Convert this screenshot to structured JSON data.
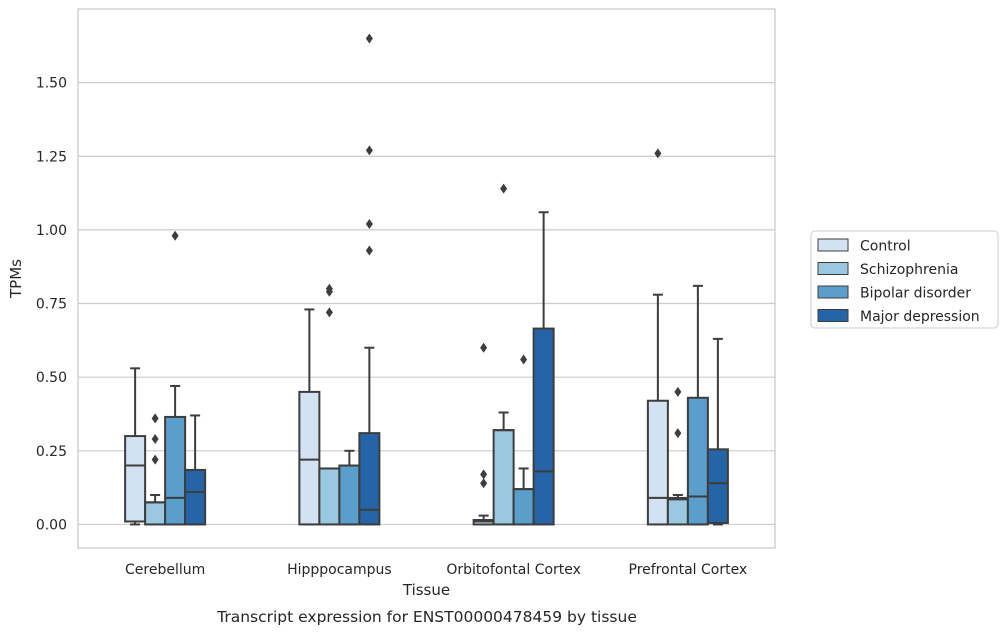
{
  "chart_data": {
    "type": "boxplot",
    "xlabel": "Tissue",
    "ylabel": "TPMs",
    "caption": "Transcript expression for ENST00000478459 by tissue",
    "ylim": [
      -0.08,
      1.75
    ],
    "yticks": [
      "0.00",
      "0.25",
      "0.50",
      "0.75",
      "1.00",
      "1.25",
      "1.50"
    ],
    "grid": "horizontal",
    "legend_placement": "right",
    "categories": [
      "Cerebellum",
      "Hipppocampus",
      "Orbitofontal Cortex",
      "Prefrontal Cortex"
    ],
    "series": [
      {
        "name": "Control",
        "color": "#d2e2f2",
        "boxes": [
          {
            "whisker_low": 0.0,
            "q1": 0.01,
            "median": 0.2,
            "q3": 0.3,
            "whisker_high": 0.53,
            "outliers": []
          },
          {
            "whisker_low": 0.0,
            "q1": 0.0,
            "median": 0.22,
            "q3": 0.45,
            "whisker_high": 0.73,
            "outliers": []
          },
          {
            "whisker_low": 0.0,
            "q1": 0.0,
            "median": 0.01,
            "q3": 0.015,
            "whisker_high": 0.03,
            "outliers": [
              0.14,
              0.17,
              0.6
            ]
          },
          {
            "whisker_low": 0.0,
            "q1": 0.0,
            "median": 0.09,
            "q3": 0.42,
            "whisker_high": 0.78,
            "outliers": [
              1.26
            ]
          }
        ]
      },
      {
        "name": "Schizophrenia",
        "color": "#9ac8e0",
        "boxes": [
          {
            "whisker_low": 0.0,
            "q1": 0.0,
            "median": 0.075,
            "q3": 0.075,
            "whisker_high": 0.1,
            "outliers": [
              0.22,
              0.29,
              0.36
            ]
          },
          {
            "whisker_low": 0.0,
            "q1": 0.0,
            "median": 0.19,
            "q3": 0.19,
            "whisker_high": 0.19,
            "outliers": [
              0.72,
              0.79,
              0.8
            ]
          },
          {
            "whisker_low": 0.0,
            "q1": 0.0,
            "median": 0.32,
            "q3": 0.32,
            "whisker_high": 0.38,
            "outliers": [
              1.14
            ]
          },
          {
            "whisker_low": 0.0,
            "q1": 0.0,
            "median": 0.085,
            "q3": 0.09,
            "whisker_high": 0.1,
            "outliers": [
              0.31,
              0.45
            ]
          }
        ]
      },
      {
        "name": "Bipolar disorder",
        "color": "#5a9ecb",
        "boxes": [
          {
            "whisker_low": 0.0,
            "q1": 0.0,
            "median": 0.09,
            "q3": 0.365,
            "whisker_high": 0.47,
            "outliers": [
              0.98
            ]
          },
          {
            "whisker_low": 0.0,
            "q1": 0.0,
            "median": 0.2,
            "q3": 0.2,
            "whisker_high": 0.25,
            "outliers": []
          },
          {
            "whisker_low": 0.0,
            "q1": 0.0,
            "median": 0.12,
            "q3": 0.12,
            "whisker_high": 0.19,
            "outliers": [
              0.56
            ]
          },
          {
            "whisker_low": 0.0,
            "q1": 0.0,
            "median": 0.095,
            "q3": 0.43,
            "whisker_high": 0.81,
            "outliers": []
          }
        ]
      },
      {
        "name": "Major depression",
        "color": "#2565a7",
        "boxes": [
          {
            "whisker_low": 0.0,
            "q1": 0.0,
            "median": 0.11,
            "q3": 0.185,
            "whisker_high": 0.37,
            "outliers": []
          },
          {
            "whisker_low": 0.0,
            "q1": 0.0,
            "median": 0.05,
            "q3": 0.31,
            "whisker_high": 0.6,
            "outliers": [
              0.93,
              1.02,
              1.27,
              1.65
            ]
          },
          {
            "whisker_low": 0.0,
            "q1": 0.0,
            "median": 0.18,
            "q3": 0.665,
            "whisker_high": 1.06,
            "outliers": []
          },
          {
            "whisker_low": 0.0,
            "q1": 0.005,
            "median": 0.14,
            "q3": 0.255,
            "whisker_high": 0.63,
            "outliers": []
          }
        ]
      }
    ]
  }
}
